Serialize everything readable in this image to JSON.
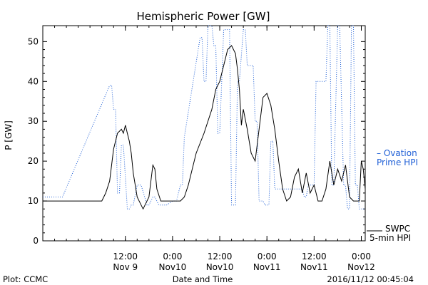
{
  "chart_data": {
    "type": "line",
    "title": "Hemispheric Power [GW]",
    "ylabel": "P [GW]",
    "xlabel": "Date and Time",
    "ylim": [
      0,
      54
    ],
    "xlim": [
      "2016-11-08 15:00",
      "2016-11-12 01:00"
    ],
    "yticks": [
      0,
      10,
      20,
      30,
      40,
      50
    ],
    "yticks_labels": [
      "0",
      "10",
      "20",
      "30",
      "40",
      "50"
    ],
    "xticks": [
      {
        "at": "2016-11-09 12:00",
        "time": "12:00",
        "date": "Nov 9"
      },
      {
        "at": "2016-11-10 00:00",
        "time": "0:00",
        "date": "Nov10"
      },
      {
        "at": "2016-11-10 12:00",
        "time": "12:00",
        "date": "Nov10"
      },
      {
        "at": "2016-11-11 00:00",
        "time": "0:00",
        "date": "Nov11"
      },
      {
        "at": "2016-11-11 12:00",
        "time": "12:00",
        "date": "Nov11"
      },
      {
        "at": "2016-11-12 00:00",
        "time": "0:00",
        "date": "Nov12"
      }
    ],
    "grid": false,
    "series": [
      {
        "name": "Ovation Prime HPI",
        "legend_text": [
          "– Ovation",
          "Prime HPI"
        ],
        "color": "#1f5fd6",
        "style": "dotted",
        "x": [
          "2016-11-08 15:00",
          "2016-11-08 17:30",
          "2016-11-08 20:00",
          "2016-11-09 08:00",
          "2016-11-09 08:30",
          "2016-11-09 09:00",
          "2016-11-09 09:30",
          "2016-11-09 10:00",
          "2016-11-09 10:30",
          "2016-11-09 11:00",
          "2016-11-09 11:30",
          "2016-11-09 12:30",
          "2016-11-09 13:00",
          "2016-11-09 13:30",
          "2016-11-09 14:00",
          "2016-11-09 15:00",
          "2016-11-09 16:00",
          "2016-11-09 17:30",
          "2016-11-09 18:00",
          "2016-11-09 19:00",
          "2016-11-09 19:30",
          "2016-11-09 20:30",
          "2016-11-09 21:00",
          "2016-11-09 22:00",
          "2016-11-09 22:30",
          "2016-11-10 00:00",
          "2016-11-10 01:00",
          "2016-11-10 02:00",
          "2016-11-10 02:30",
          "2016-11-10 03:00",
          "2016-11-10 07:00",
          "2016-11-10 07:30",
          "2016-11-10 08:00",
          "2016-11-10 08:30",
          "2016-11-10 09:00",
          "2016-11-10 10:00",
          "2016-11-10 10:30",
          "2016-11-10 11:00",
          "2016-11-10 11:30",
          "2016-11-10 12:00",
          "2016-11-10 13:00",
          "2016-11-10 14:30",
          "2016-11-10 15:00",
          "2016-11-10 16:00",
          "2016-11-10 16:30",
          "2016-11-10 17:00",
          "2016-11-10 18:00",
          "2016-11-10 18:30",
          "2016-11-10 19:00",
          "2016-11-10 20:00",
          "2016-11-10 20:30",
          "2016-11-10 21:00",
          "2016-11-10 21:30",
          "2016-11-10 22:00",
          "2016-11-10 23:00",
          "2016-11-10 23:30",
          "2016-11-11 00:30",
          "2016-11-11 01:00",
          "2016-11-11 01:30",
          "2016-11-11 02:00",
          "2016-11-11 05:00",
          "2016-11-11 09:00",
          "2016-11-11 09:30",
          "2016-11-11 10:00",
          "2016-11-11 10:30",
          "2016-11-11 12:00",
          "2016-11-11 12:30",
          "2016-11-11 15:00",
          "2016-11-11 15:30",
          "2016-11-11 16:00",
          "2016-11-11 16:30",
          "2016-11-11 17:00",
          "2016-11-11 18:00",
          "2016-11-11 18:30",
          "2016-11-11 19:30",
          "2016-11-11 20:00",
          "2016-11-11 20:30",
          "2016-11-11 21:00",
          "2016-11-11 21:30",
          "2016-11-11 22:00",
          "2016-11-11 22:30",
          "2016-11-11 23:00",
          "2016-11-11 23:30",
          "2016-11-12 00:00",
          "2016-11-12 00:30",
          "2016-11-12 01:00"
        ],
        "y": [
          11,
          11,
          11,
          39,
          39,
          33,
          33,
          12,
          12,
          24,
          24,
          8,
          8,
          9,
          9,
          14,
          14,
          9,
          9,
          11,
          11,
          9,
          9,
          9,
          9,
          10,
          10,
          14,
          14,
          26,
          51,
          51,
          40,
          40,
          54,
          54,
          49,
          49,
          27,
          27,
          53,
          53,
          9,
          9,
          40,
          40,
          53,
          53,
          44,
          44,
          44,
          30,
          30,
          10,
          10,
          9,
          9,
          25,
          25,
          13,
          13,
          13,
          11,
          11,
          14,
          14,
          40,
          40,
          54,
          54,
          14,
          14,
          54,
          54,
          14,
          14,
          8,
          8,
          54,
          54,
          14,
          14,
          8,
          8,
          8,
          8
        ]
      },
      {
        "name": "SWPC 5-min HPI",
        "legend_text": [
          "SWPC",
          "5-min HPI"
        ],
        "color": "#000000",
        "style": "solid",
        "x": [
          "2016-11-08 15:00",
          "2016-11-09 06:00",
          "2016-11-09 07:00",
          "2016-11-09 08:00",
          "2016-11-09 09:00",
          "2016-11-09 10:00",
          "2016-11-09 11:00",
          "2016-11-09 11:30",
          "2016-11-09 12:00",
          "2016-11-09 12:30",
          "2016-11-09 13:00",
          "2016-11-09 13:30",
          "2016-11-09 14:00",
          "2016-11-09 15:00",
          "2016-11-09 16:00",
          "2016-11-09 16:30",
          "2016-11-09 17:00",
          "2016-11-09 18:00",
          "2016-11-09 19:00",
          "2016-11-09 19:30",
          "2016-11-09 20:00",
          "2016-11-09 21:00",
          "2016-11-09 22:00",
          "2016-11-10 00:00",
          "2016-11-10 02:00",
          "2016-11-10 03:00",
          "2016-11-10 04:00",
          "2016-11-10 05:00",
          "2016-11-10 06:00",
          "2016-11-10 08:00",
          "2016-11-10 10:00",
          "2016-11-10 11:00",
          "2016-11-10 12:00",
          "2016-11-10 13:00",
          "2016-11-10 14:00",
          "2016-11-10 15:00",
          "2016-11-10 16:00",
          "2016-11-10 16:30",
          "2016-11-10 17:00",
          "2016-11-10 17:30",
          "2016-11-10 18:00",
          "2016-11-10 19:00",
          "2016-11-10 20:00",
          "2016-11-10 21:00",
          "2016-11-10 22:00",
          "2016-11-10 23:00",
          "2016-11-11 00:00",
          "2016-11-11 01:00",
          "2016-11-11 02:00",
          "2016-11-11 03:00",
          "2016-11-11 04:00",
          "2016-11-11 05:00",
          "2016-11-11 06:00",
          "2016-11-11 07:00",
          "2016-11-11 08:00",
          "2016-11-11 09:00",
          "2016-11-11 10:00",
          "2016-11-11 11:00",
          "2016-11-11 12:00",
          "2016-11-11 13:00",
          "2016-11-11 14:00",
          "2016-11-11 15:00",
          "2016-11-11 16:00",
          "2016-11-11 17:00",
          "2016-11-11 18:00",
          "2016-11-11 19:00",
          "2016-11-11 20:00",
          "2016-11-11 21:00",
          "2016-11-11 22:00",
          "2016-11-11 23:00",
          "2016-11-11 23:30",
          "2016-11-12 00:00",
          "2016-11-12 00:30",
          "2016-11-12 01:00"
        ],
        "y": [
          10,
          10,
          12,
          15,
          23,
          27,
          28,
          27,
          29,
          27,
          25,
          22,
          17,
          11,
          9,
          8,
          9,
          11,
          19,
          18,
          13,
          10,
          10,
          10,
          10,
          11,
          14,
          18,
          22,
          27,
          33,
          38,
          40,
          44,
          48,
          49,
          47,
          43,
          38,
          29,
          33,
          28,
          22,
          20,
          28,
          36,
          37,
          34,
          28,
          20,
          13,
          10,
          11,
          16,
          18,
          12,
          17,
          12,
          14,
          10,
          10,
          13,
          20,
          14,
          18,
          15,
          19,
          11,
          10,
          10,
          10,
          20,
          18,
          13
        ]
      }
    ]
  },
  "footer": {
    "left": "Plot: CCMC",
    "center": "Date and Time",
    "right": "2016/11/12 00:45:04"
  }
}
